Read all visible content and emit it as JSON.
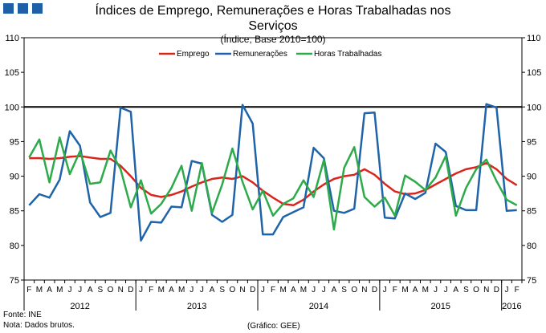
{
  "chart_data": {
    "type": "line",
    "title": "Índices de Emprego, Remunerações e Horas Trabalhadas nos Serviços",
    "subtitle": "(Índice, Base 2010=100)",
    "ylim": [
      75,
      110
    ],
    "yticks": [
      75,
      80,
      85,
      90,
      95,
      100,
      105,
      110
    ],
    "reference_line": 100,
    "months": [
      "F",
      "M",
      "A",
      "M",
      "J",
      "J",
      "A",
      "S",
      "O",
      "N",
      "D",
      "J",
      "F",
      "M",
      "A",
      "M",
      "J",
      "J",
      "A",
      "S",
      "O",
      "N",
      "D",
      "J",
      "F",
      "M",
      "A",
      "M",
      "J",
      "J",
      "A",
      "S",
      "O",
      "N",
      "D",
      "J",
      "F",
      "M",
      "A",
      "M",
      "J",
      "J",
      "A",
      "S",
      "O",
      "N",
      "D",
      "J",
      "F"
    ],
    "years": [
      {
        "label": "2012",
        "start": 0,
        "end": 10
      },
      {
        "label": "2013",
        "start": 11,
        "end": 22
      },
      {
        "label": "2014",
        "start": 23,
        "end": 34
      },
      {
        "label": "2015",
        "start": 35,
        "end": 46
      },
      {
        "label": "2016",
        "start": 47,
        "end": 48
      }
    ],
    "series": [
      {
        "name": "Emprego",
        "color": "#d9261c",
        "values": [
          92.6,
          92.6,
          92.5,
          92.6,
          92.8,
          92.9,
          92.7,
          92.5,
          92.5,
          91.5,
          90.0,
          88.3,
          87.3,
          87.0,
          87.3,
          87.8,
          88.5,
          89.1,
          89.6,
          89.8,
          89.6,
          90.0,
          89.1,
          87.9,
          86.9,
          86.0,
          85.8,
          86.6,
          87.8,
          88.8,
          89.6,
          90.0,
          90.2,
          91.0,
          90.2,
          88.9,
          87.8,
          87.4,
          87.5,
          88.0,
          88.8,
          89.6,
          90.4,
          91.0,
          91.3,
          91.9,
          91.0,
          89.6,
          88.7
        ]
      },
      {
        "name": "Remunerações",
        "color": "#1f63a8",
        "values": [
          85.8,
          87.4,
          86.9,
          89.5,
          96.5,
          94.4,
          86.2,
          84.1,
          84.7,
          99.9,
          99.3,
          80.7,
          83.4,
          83.3,
          85.6,
          85.5,
          92.2,
          91.8,
          84.4,
          83.4,
          84.4,
          100.3,
          97.6,
          81.6,
          81.6,
          84.1,
          84.8,
          85.5,
          94.1,
          92.6,
          85.0,
          84.7,
          85.3,
          99.1,
          99.2,
          84.0,
          83.9,
          87.5,
          86.7,
          87.6,
          94.7,
          93.5,
          85.7,
          85.1,
          85.1,
          100.4,
          99.9,
          85.0,
          85.1
        ]
      },
      {
        "name": "Horas Trabalhadas",
        "color": "#2daa4a",
        "values": [
          92.7,
          95.3,
          89.1,
          95.6,
          90.3,
          93.6,
          88.9,
          89.1,
          93.7,
          91.0,
          85.5,
          89.4,
          84.6,
          86.0,
          88.3,
          91.5,
          85.0,
          91.9,
          84.7,
          88.8,
          94.0,
          89.2,
          85.2,
          87.9,
          84.3,
          86.0,
          86.8,
          89.4,
          87.0,
          92.3,
          82.3,
          91.2,
          94.2,
          87.0,
          85.6,
          86.9,
          84.3,
          90.1,
          89.2,
          88.0,
          89.8,
          92.9,
          84.3,
          88.3,
          91.0,
          92.4,
          89.3,
          86.6,
          85.8
        ]
      }
    ]
  },
  "footer": {
    "source": "Fonte: INE",
    "note": "Nota: Dados brutos.",
    "credit": "(Gráfico: GEE)"
  }
}
